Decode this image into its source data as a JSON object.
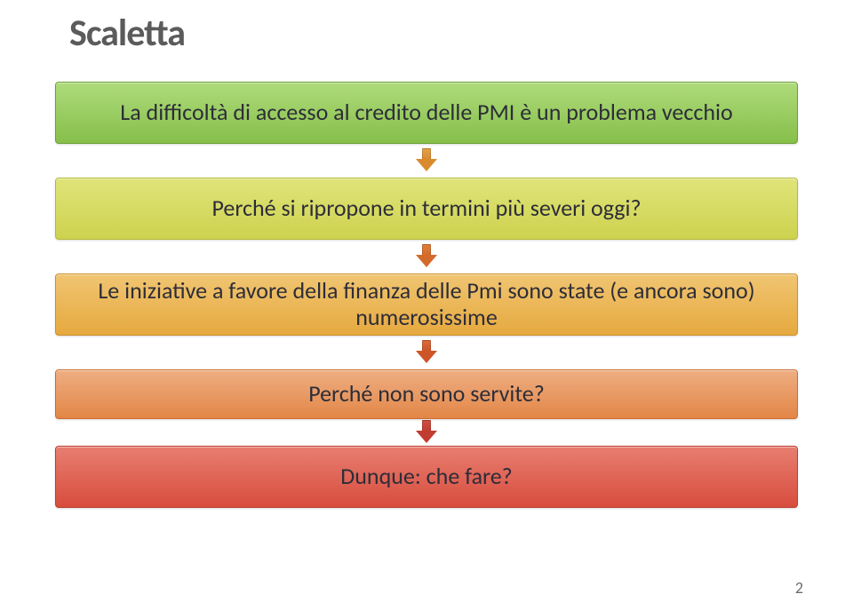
{
  "title": "Scaletta",
  "page_number": "2",
  "boxes": [
    {
      "text": "La difficoltà di accesso al credito delle PMI è un problema vecchio",
      "gradient_top": "#aedb7b",
      "gradient_bottom": "#86bf4a",
      "border_color": "#6aa038",
      "height_class": "",
      "arrow_after": true,
      "arrow_stem_color": "#e3a24a",
      "arrow_head_color": "#d98a2f"
    },
    {
      "text": "Perché si ripropone in termini più severi oggi?",
      "gradient_top": "#e0e479",
      "gradient_bottom": "#cdd24f",
      "border_color": "#b4b93b",
      "height_class": "",
      "arrow_after": true,
      "arrow_stem_color": "#dd7f3b",
      "arrow_head_color": "#d36a2a"
    },
    {
      "text": "Le iniziative a favore della finanza delle Pmi sono state (e ancora sono) numerosissime",
      "gradient_top": "#f0c572",
      "gradient_bottom": "#e6a93f",
      "border_color": "#cc8f2e",
      "height_class": "",
      "arrow_after": true,
      "arrow_stem_color": "#d86a3d",
      "arrow_head_color": "#cd5528"
    },
    {
      "text": "Perché non sono servite?",
      "gradient_top": "#eeae82",
      "gradient_bottom": "#e38647",
      "border_color": "#c96d32",
      "height_class": "short",
      "arrow_after": true,
      "arrow_stem_color": "#ce4f42",
      "arrow_head_color": "#c23b30"
    },
    {
      "text": "Dunque: che fare?",
      "gradient_top": "#e77e70",
      "gradient_bottom": "#d84d3e",
      "border_color": "#bc3b2f",
      "height_class": "",
      "arrow_after": false
    }
  ]
}
